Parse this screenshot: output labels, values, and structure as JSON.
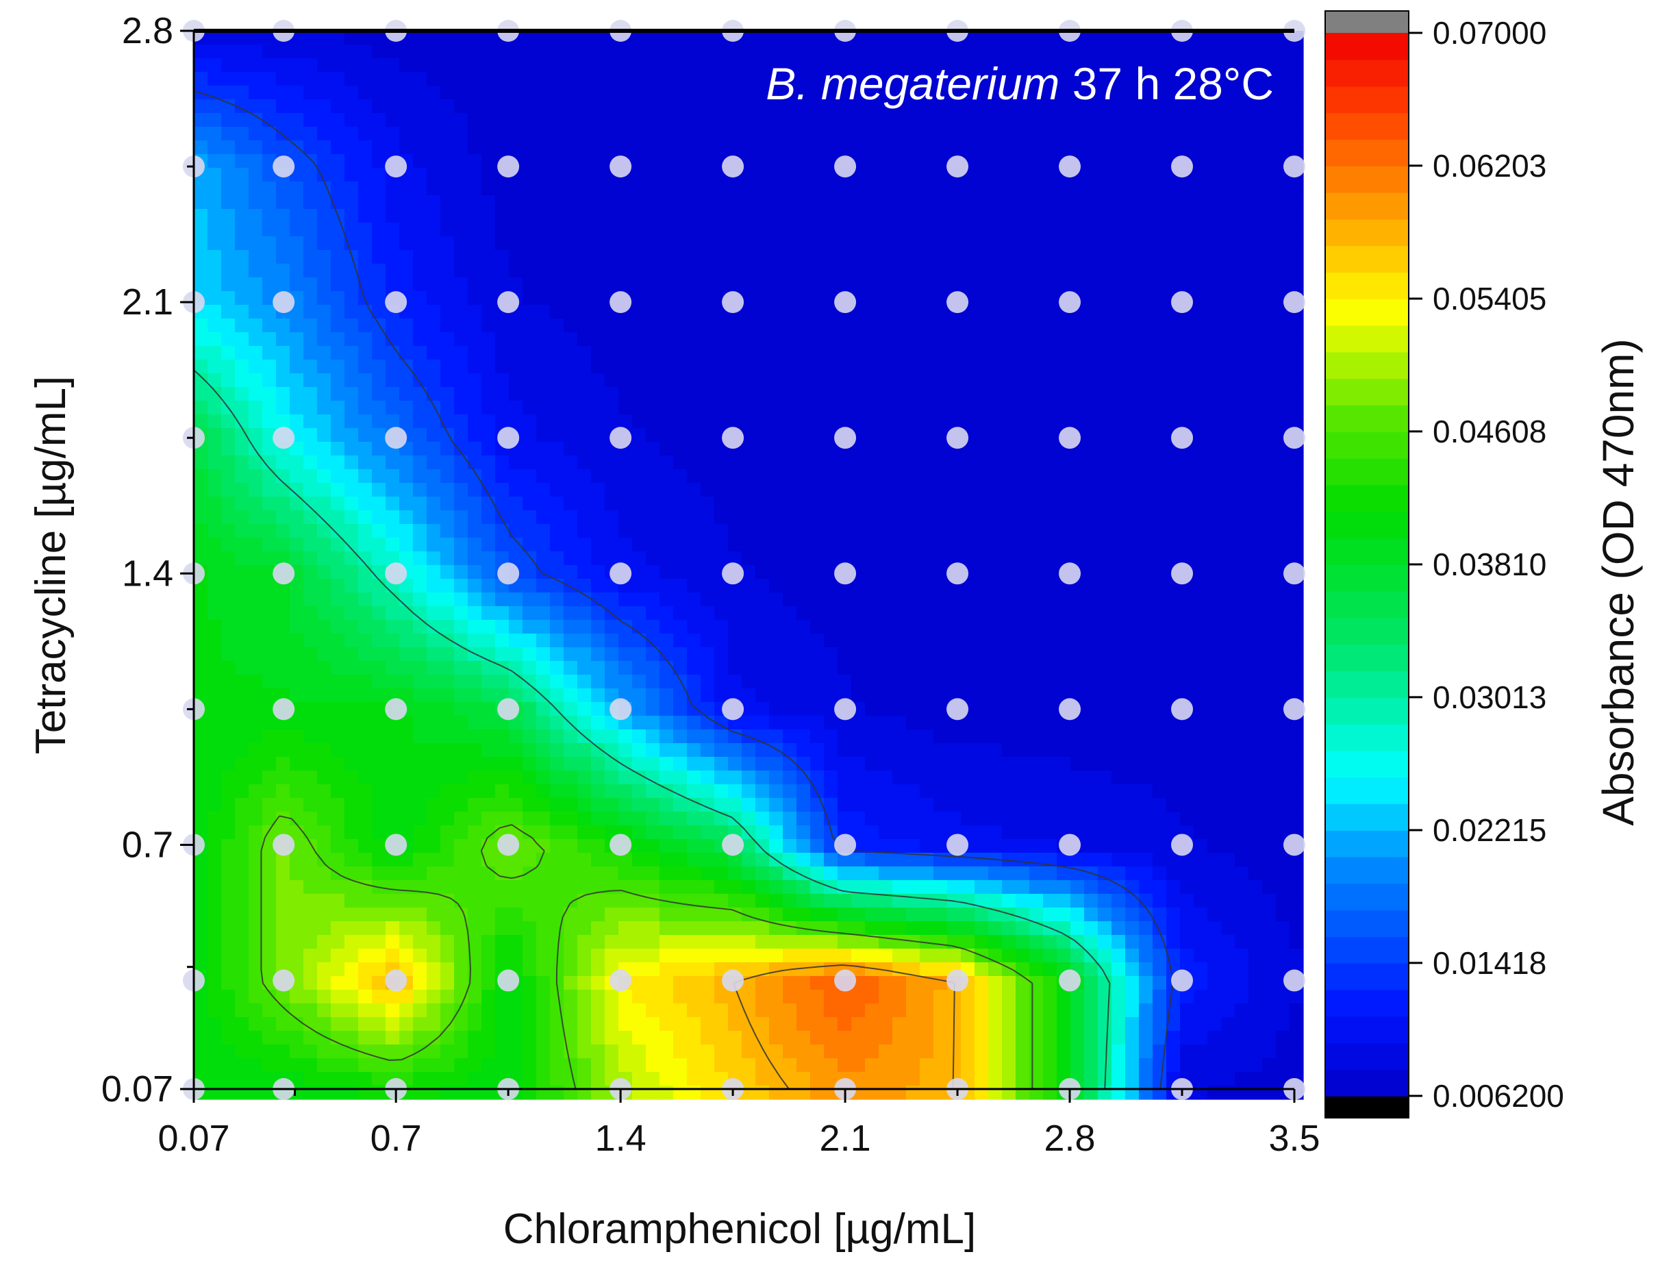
{
  "chart_data": {
    "type": "heatmap",
    "subtype": "filled-contour",
    "title_italic": "B. megaterium",
    "title_rest": " 37 h  28°C",
    "xlabel": "Chloramphenicol [µg/mL]",
    "ylabel": "Tetracycline [µg/mL]",
    "colorbar_label": "Absorbance (OD 470nm)",
    "xlim": [
      0.07,
      3.5
    ],
    "ylim": [
      0.07,
      2.8
    ],
    "x_ticks": [
      0.07,
      0.7,
      1.4,
      2.1,
      2.8,
      3.5
    ],
    "x_tick_labels": [
      "0.07",
      "0.7",
      "1.4",
      "2.1",
      "2.8",
      "3.5"
    ],
    "y_ticks": [
      0.07,
      0.7,
      1.4,
      2.1,
      2.8
    ],
    "y_tick_labels": [
      "0.07",
      "0.7",
      "1.4",
      "2.1",
      "2.8"
    ],
    "x": [
      0.07,
      0.35,
      0.7,
      1.05,
      1.4,
      1.75,
      2.1,
      2.45,
      2.8,
      3.15,
      3.5
    ],
    "y": [
      0.07,
      0.35,
      0.7,
      1.05,
      1.4,
      1.75,
      2.1,
      2.45,
      2.8
    ],
    "z": [
      [
        0.04,
        0.04,
        0.042,
        0.04,
        0.05,
        0.056,
        0.06,
        0.058,
        0.04,
        0.008,
        0.007
      ],
      [
        0.04,
        0.048,
        0.058,
        0.04,
        0.054,
        0.058,
        0.064,
        0.058,
        0.04,
        0.012,
        0.008
      ],
      [
        0.04,
        0.048,
        0.04,
        0.048,
        0.042,
        0.035,
        0.012,
        0.01,
        0.009,
        0.008,
        0.007
      ],
      [
        0.04,
        0.04,
        0.04,
        0.036,
        0.022,
        0.01,
        0.008,
        0.007,
        0.007,
        0.007,
        0.007
      ],
      [
        0.04,
        0.038,
        0.028,
        0.016,
        0.01,
        0.008,
        0.007,
        0.007,
        0.007,
        0.007,
        0.007
      ],
      [
        0.036,
        0.026,
        0.018,
        0.01,
        0.008,
        0.007,
        0.007,
        0.007,
        0.007,
        0.007,
        0.007
      ],
      [
        0.024,
        0.02,
        0.012,
        0.008,
        0.007,
        0.007,
        0.007,
        0.007,
        0.007,
        0.007,
        0.007
      ],
      [
        0.022,
        0.016,
        0.01,
        0.007,
        0.007,
        0.007,
        0.007,
        0.007,
        0.007,
        0.007,
        0.007
      ],
      [
        0.008,
        0.008,
        0.007,
        0.007,
        0.007,
        0.007,
        0.007,
        0.007,
        0.007,
        0.007,
        0.007
      ]
    ],
    "colorbar": {
      "min": 0.0062,
      "max": 0.07,
      "levels": 40,
      "tick_labels": [
        "0.07000",
        "0.06203",
        "0.05405",
        "0.04608",
        "0.03810",
        "0.03013",
        "0.02215",
        "0.01418",
        "0.006200"
      ],
      "tick_values": [
        0.07,
        0.06203,
        0.05405,
        0.04608,
        0.0381,
        0.03013,
        0.02215,
        0.01418,
        0.0062
      ],
      "over_color": "#808080",
      "under_color": "#000000"
    },
    "contour_lines": [
      0.0142,
      0.03,
      0.046,
      0.058
    ],
    "markers": "sampled grid points (light dots)"
  },
  "colors": {
    "marker": "#d8d8f0",
    "contour_line": "#333333",
    "axis": "#000000"
  }
}
